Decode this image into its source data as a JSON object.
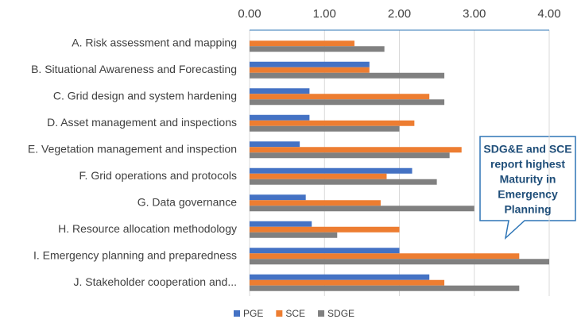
{
  "chart_data": {
    "type": "barh",
    "categories": [
      "A. Risk assessment and mapping",
      "B. Situational Awareness and Forecasting",
      "C. Grid design and system hardening",
      "D. Asset management and inspections",
      "E. Vegetation management and inspection",
      "F. Grid operations and protocols",
      "G. Data governance",
      "H. Resource allocation methodology",
      "I. Emergency planning and preparedness",
      "J. Stakeholder cooperation and..."
    ],
    "series": [
      {
        "name": "PGE",
        "color": "#4472c4",
        "values": [
          0,
          1.6,
          0.8,
          0.8,
          0.67,
          2.17,
          0.75,
          0.83,
          2.0,
          2.4
        ]
      },
      {
        "name": "SCE",
        "color": "#ed7d31",
        "values": [
          1.4,
          1.6,
          2.4,
          2.2,
          2.83,
          1.83,
          1.75,
          2.0,
          3.6,
          2.6
        ]
      },
      {
        "name": "SDGE",
        "color": "#808080",
        "values": [
          1.8,
          2.6,
          2.6,
          2.0,
          2.67,
          2.5,
          3.0,
          1.17,
          4.0,
          3.6
        ]
      }
    ],
    "xlim": [
      0,
      4
    ],
    "xticks": [
      {
        "value": 0,
        "label": "0.00"
      },
      {
        "value": 1,
        "label": "1.00"
      },
      {
        "value": 2,
        "label": "2.00"
      },
      {
        "value": 3,
        "label": "3.00"
      },
      {
        "value": 4,
        "label": "4.00"
      }
    ],
    "grid": true,
    "legend": "bottom",
    "annotation": {
      "lines": [
        "SDG&E and SCE",
        "report highest",
        "Maturity in",
        "Emergency",
        "Planning"
      ]
    }
  }
}
